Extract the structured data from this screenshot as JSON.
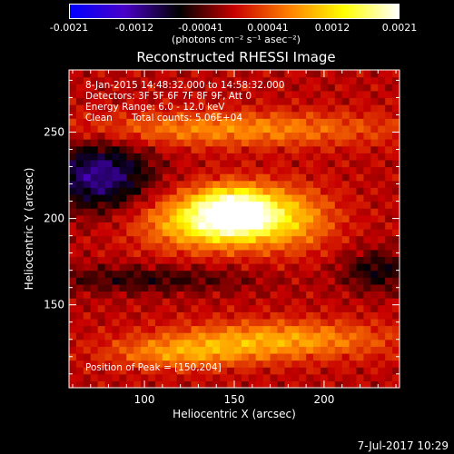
{
  "colorbar": {
    "ticks": [
      "-0.0021",
      "-0.0012",
      "-0.00041",
      "0.00041",
      "0.0012",
      "0.0021"
    ],
    "units": "(photons cm⁻² s⁻¹ asec⁻²)"
  },
  "annotations": {
    "time_range": "8-Jan-2015 14:48:32.000 to 14:58:32.000",
    "detectors": "Detectors: 3F 5F 6F 7F 8F 9F, Att 0",
    "energy": "Energy Range: 6.0 - 12.0 keV",
    "clean": "Clean",
    "counts": "Total counts: 5.06E+04",
    "peak": "Position of Peak = [150,204]"
  },
  "footer": {
    "date": "7-Jul-2017 10:29"
  },
  "chart_data": {
    "type": "heatmap",
    "title": "Reconstructed RHESSI Image",
    "xlabel": "Heliocentric X (arcsec)",
    "ylabel": "Heliocentric Y (arcsec)",
    "xlim": [
      58,
      242
    ],
    "ylim": [
      102,
      286
    ],
    "xticks": [
      100,
      150,
      200
    ],
    "yticks": [
      150,
      200,
      250
    ],
    "clim": [
      -0.0021,
      0.0021
    ],
    "peak": [
      150,
      204
    ],
    "colormap": [
      "#0000ff",
      "#4a00c8",
      "#000000",
      "#c80000",
      "#ff8000",
      "#ffff00",
      "#ffffff"
    ]
  }
}
